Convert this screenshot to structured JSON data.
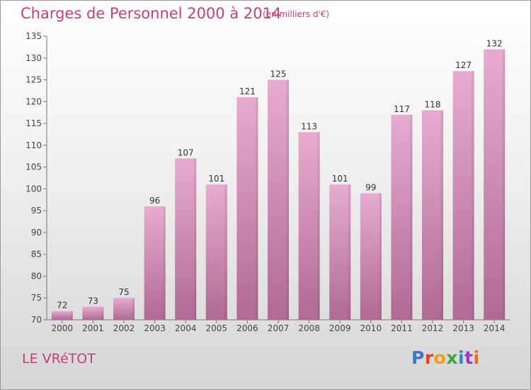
{
  "header": {
    "title": "Charges de Personnel 2000 à 2014",
    "subtitle": "(en milliers d'€)"
  },
  "footer": {
    "place": "LE VRéTOT",
    "brand": "Proxiti"
  },
  "colors": {
    "title": "#c0407c",
    "bar_top": "#e7acd0",
    "bar_bottom": "#b06a94",
    "logo_letters": [
      "#3a78c8",
      "#e2402a",
      "#f0a020",
      "#3ea83a",
      "#2a8ad0",
      "#9a3ac0",
      "#e86a2a"
    ]
  },
  "chart_data": {
    "type": "bar",
    "categories": [
      "2000",
      "2001",
      "2002",
      "2003",
      "2004",
      "2005",
      "2006",
      "2007",
      "2008",
      "2009",
      "2010",
      "2011",
      "2012",
      "2013",
      "2014"
    ],
    "values": [
      72,
      73,
      75,
      96,
      107,
      101,
      121,
      125,
      113,
      101,
      99,
      117,
      118,
      127,
      132
    ],
    "title": "Charges de Personnel 2000 à 2014",
    "xlabel": "",
    "ylabel": "",
    "ylim": [
      70,
      135
    ],
    "yticks": [
      70,
      75,
      80,
      85,
      90,
      95,
      100,
      105,
      110,
      115,
      120,
      125,
      130,
      135
    ],
    "grid": false,
    "data_labels": true
  }
}
